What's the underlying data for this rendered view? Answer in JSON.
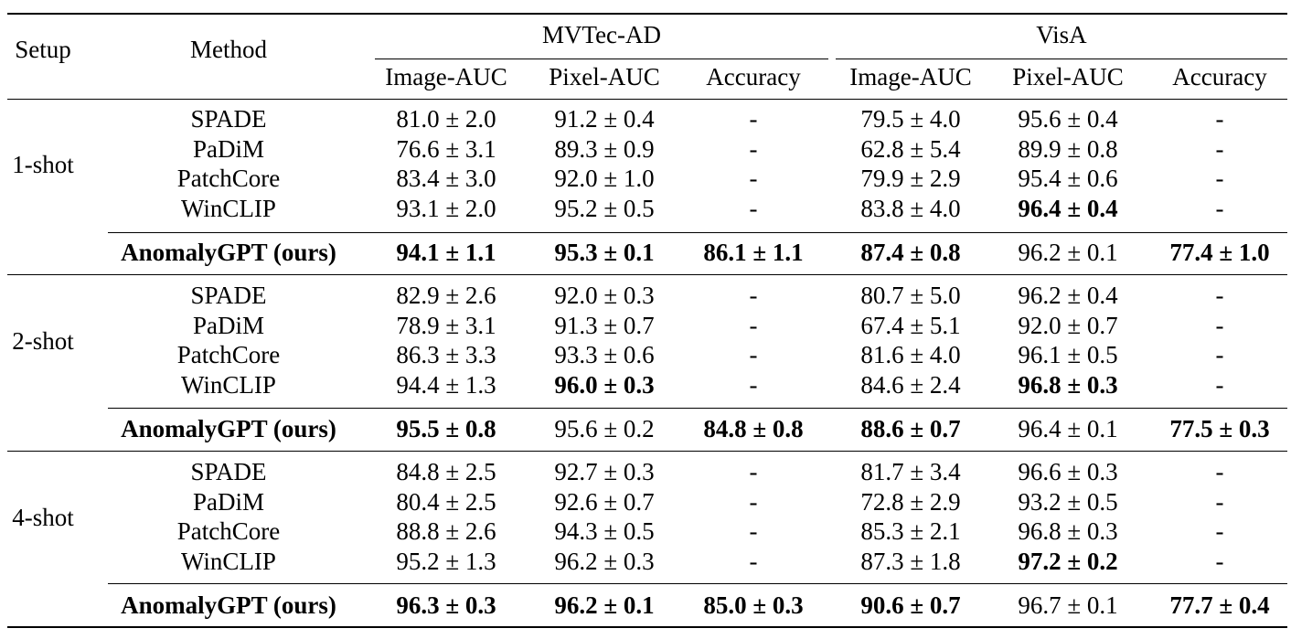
{
  "header": {
    "setup": "Setup",
    "method": "Method",
    "datasets": [
      "MVTec-AD",
      "VisA"
    ],
    "metrics": [
      "Image-AUC",
      "Pixel-AUC",
      "Accuracy",
      "Image-AUC",
      "Pixel-AUC",
      "Accuracy"
    ]
  },
  "groups": [
    {
      "setup": "1-shot",
      "rows": [
        {
          "method": "SPADE",
          "bold_method": false,
          "cells": [
            {
              "v": "81.0 ± 2.0",
              "b": false
            },
            {
              "v": "91.2 ± 0.4",
              "b": false
            },
            {
              "v": "-",
              "b": false
            },
            {
              "v": "79.5 ± 4.0",
              "b": false
            },
            {
              "v": "95.6 ± 0.4",
              "b": false
            },
            {
              "v": "-",
              "b": false
            }
          ]
        },
        {
          "method": "PaDiM",
          "bold_method": false,
          "cells": [
            {
              "v": "76.6 ± 3.1",
              "b": false
            },
            {
              "v": "89.3 ± 0.9",
              "b": false
            },
            {
              "v": "-",
              "b": false
            },
            {
              "v": "62.8 ± 5.4",
              "b": false
            },
            {
              "v": "89.9 ± 0.8",
              "b": false
            },
            {
              "v": "-",
              "b": false
            }
          ]
        },
        {
          "method": "PatchCore",
          "bold_method": false,
          "cells": [
            {
              "v": "83.4 ± 3.0",
              "b": false
            },
            {
              "v": "92.0 ± 1.0",
              "b": false
            },
            {
              "v": "-",
              "b": false
            },
            {
              "v": "79.9 ± 2.9",
              "b": false
            },
            {
              "v": "95.4 ± 0.6",
              "b": false
            },
            {
              "v": "-",
              "b": false
            }
          ]
        },
        {
          "method": "WinCLIP",
          "bold_method": false,
          "cells": [
            {
              "v": "93.1 ± 2.0",
              "b": false
            },
            {
              "v": "95.2 ± 0.5",
              "b": false
            },
            {
              "v": "-",
              "b": false
            },
            {
              "v": "83.8 ± 4.0",
              "b": false
            },
            {
              "v": "96.4 ± 0.4",
              "b": true
            },
            {
              "v": "-",
              "b": false
            }
          ]
        },
        {
          "method": "AnomalyGPT (ours)",
          "bold_method": true,
          "cells": [
            {
              "v": "94.1 ± 1.1",
              "b": true
            },
            {
              "v": "95.3 ± 0.1",
              "b": true
            },
            {
              "v": "86.1 ± 1.1",
              "b": true
            },
            {
              "v": "87.4 ± 0.8",
              "b": true
            },
            {
              "v": "96.2 ± 0.1",
              "b": false
            },
            {
              "v": "77.4 ± 1.0",
              "b": true
            }
          ]
        }
      ]
    },
    {
      "setup": "2-shot",
      "rows": [
        {
          "method": "SPADE",
          "bold_method": false,
          "cells": [
            {
              "v": "82.9 ± 2.6",
              "b": false
            },
            {
              "v": "92.0 ± 0.3",
              "b": false
            },
            {
              "v": "-",
              "b": false
            },
            {
              "v": "80.7 ± 5.0",
              "b": false
            },
            {
              "v": "96.2 ± 0.4",
              "b": false
            },
            {
              "v": "-",
              "b": false
            }
          ]
        },
        {
          "method": "PaDiM",
          "bold_method": false,
          "cells": [
            {
              "v": "78.9 ± 3.1",
              "b": false
            },
            {
              "v": "91.3 ± 0.7",
              "b": false
            },
            {
              "v": "-",
              "b": false
            },
            {
              "v": "67.4 ± 5.1",
              "b": false
            },
            {
              "v": "92.0 ± 0.7",
              "b": false
            },
            {
              "v": "-",
              "b": false
            }
          ]
        },
        {
          "method": "PatchCore",
          "bold_method": false,
          "cells": [
            {
              "v": "86.3 ± 3.3",
              "b": false
            },
            {
              "v": "93.3 ± 0.6",
              "b": false
            },
            {
              "v": "-",
              "b": false
            },
            {
              "v": "81.6 ± 4.0",
              "b": false
            },
            {
              "v": "96.1 ± 0.5",
              "b": false
            },
            {
              "v": "-",
              "b": false
            }
          ]
        },
        {
          "method": "WinCLIP",
          "bold_method": false,
          "cells": [
            {
              "v": "94.4 ± 1.3",
              "b": false
            },
            {
              "v": "96.0 ± 0.3",
              "b": true
            },
            {
              "v": "-",
              "b": false
            },
            {
              "v": "84.6 ± 2.4",
              "b": false
            },
            {
              "v": "96.8 ± 0.3",
              "b": true
            },
            {
              "v": "-",
              "b": false
            }
          ]
        },
        {
          "method": "AnomalyGPT (ours)",
          "bold_method": true,
          "cells": [
            {
              "v": "95.5 ± 0.8",
              "b": true
            },
            {
              "v": "95.6 ± 0.2",
              "b": false
            },
            {
              "v": "84.8 ± 0.8",
              "b": true
            },
            {
              "v": "88.6 ± 0.7",
              "b": true
            },
            {
              "v": "96.4 ± 0.1",
              "b": false
            },
            {
              "v": "77.5 ± 0.3",
              "b": true
            }
          ]
        }
      ]
    },
    {
      "setup": "4-shot",
      "rows": [
        {
          "method": "SPADE",
          "bold_method": false,
          "cells": [
            {
              "v": "84.8 ± 2.5",
              "b": false
            },
            {
              "v": "92.7 ± 0.3",
              "b": false
            },
            {
              "v": "-",
              "b": false
            },
            {
              "v": "81.7 ± 3.4",
              "b": false
            },
            {
              "v": "96.6 ± 0.3",
              "b": false
            },
            {
              "v": "-",
              "b": false
            }
          ]
        },
        {
          "method": "PaDiM",
          "bold_method": false,
          "cells": [
            {
              "v": "80.4 ± 2.5",
              "b": false
            },
            {
              "v": "92.6 ± 0.7",
              "b": false
            },
            {
              "v": "-",
              "b": false
            },
            {
              "v": "72.8 ± 2.9",
              "b": false
            },
            {
              "v": "93.2 ± 0.5",
              "b": false
            },
            {
              "v": "-",
              "b": false
            }
          ]
        },
        {
          "method": "PatchCore",
          "bold_method": false,
          "cells": [
            {
              "v": "88.8 ± 2.6",
              "b": false
            },
            {
              "v": "94.3 ± 0.5",
              "b": false
            },
            {
              "v": "-",
              "b": false
            },
            {
              "v": "85.3 ± 2.1",
              "b": false
            },
            {
              "v": "96.8 ± 0.3",
              "b": false
            },
            {
              "v": "-",
              "b": false
            }
          ]
        },
        {
          "method": "WinCLIP",
          "bold_method": false,
          "cells": [
            {
              "v": "95.2 ± 1.3",
              "b": false
            },
            {
              "v": "96.2 ± 0.3",
              "b": false
            },
            {
              "v": "-",
              "b": false
            },
            {
              "v": "87.3 ± 1.8",
              "b": false
            },
            {
              "v": "97.2 ± 0.2",
              "b": true
            },
            {
              "v": "-",
              "b": false
            }
          ]
        },
        {
          "method": "AnomalyGPT (ours)",
          "bold_method": true,
          "cells": [
            {
              "v": "96.3 ± 0.3",
              "b": true
            },
            {
              "v": "96.2 ± 0.1",
              "b": true
            },
            {
              "v": "85.0 ± 0.3",
              "b": true
            },
            {
              "v": "90.6 ± 0.7",
              "b": true
            },
            {
              "v": "96.7 ± 0.1",
              "b": false
            },
            {
              "v": "77.7 ± 0.4",
              "b": true
            }
          ]
        }
      ]
    }
  ]
}
